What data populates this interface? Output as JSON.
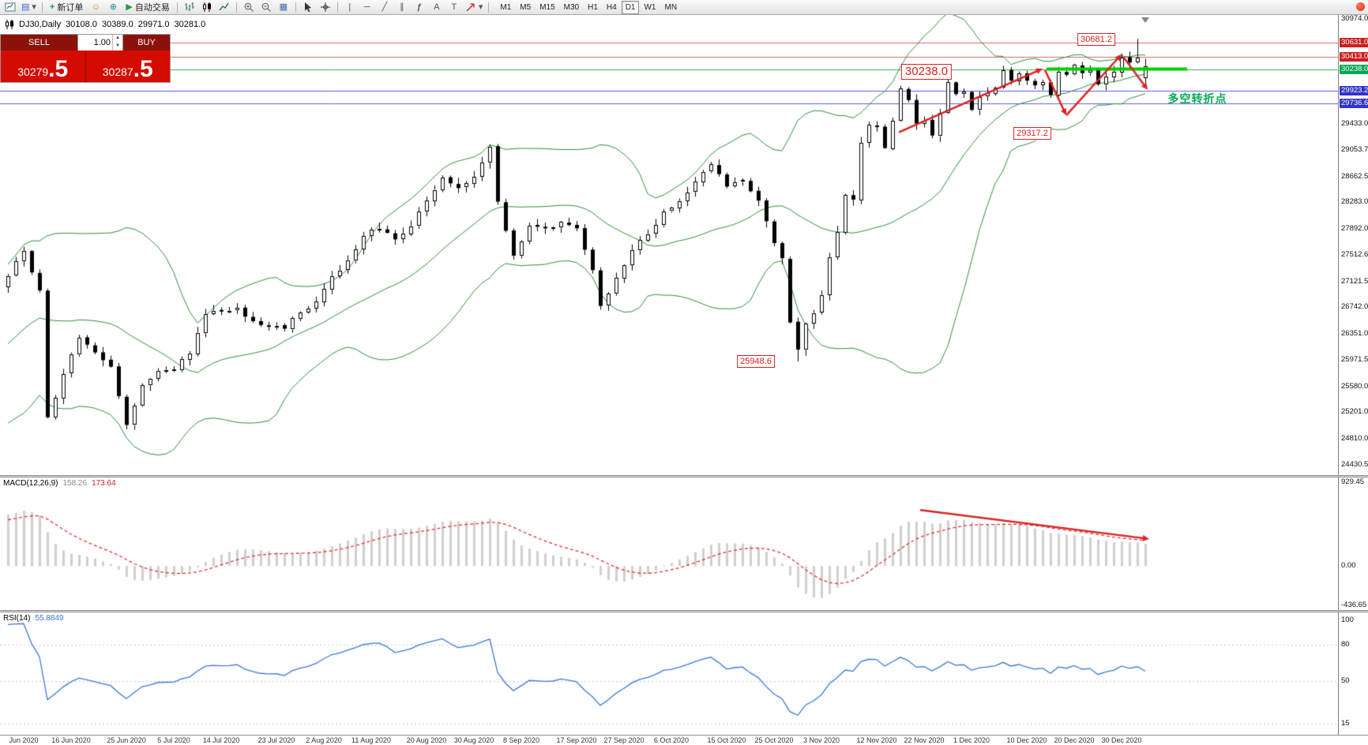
{
  "toolbar": {
    "buttons": {
      "new_order": "新订单",
      "autotrading": "自动交易"
    },
    "glyphs": {
      "profiles": "▤",
      "caret": "▾",
      "plus": "+",
      "community": "☺",
      "web": "⊕",
      "play": "▶",
      "tile": "▦",
      "vline": "|",
      "hline": "─",
      "trendline": "╱",
      "channel": "∥",
      "fibonacci": "ƒ",
      "text": "A",
      "label": "T"
    },
    "timeframes": [
      "M1",
      "M5",
      "M15",
      "M30",
      "H1",
      "H4",
      "D1",
      "W1",
      "MN"
    ],
    "active_timeframe": "D1"
  },
  "chart_info": {
    "symbol_period": "DJ30,Daily",
    "open": "30108.0",
    "high": "30389.0",
    "low": "29971.0",
    "close": "30281.0"
  },
  "trade_panel": {
    "sell_label": "SELL",
    "buy_label": "BUY",
    "volume": "1.00",
    "spin_up": "▲",
    "spin_down": "▼",
    "sell_price_base": "30279",
    "sell_price_frac": ".5",
    "buy_price_base": "30287",
    "buy_price_frac": ".5"
  },
  "chart_data": {
    "type": "candlestick",
    "symbol": "DJ30",
    "period": "Daily",
    "price_axis": [
      {
        "price": 30974.0,
        "text": "30974.0"
      },
      {
        "price": 30631.0,
        "text": "30631.0",
        "bg": "#cc1f1f"
      },
      {
        "price": 30413.0,
        "text": "30413.0",
        "bg": "#cc1f1f"
      },
      {
        "price": 30238.0,
        "text": "30238.0",
        "bg": "#00a651"
      },
      {
        "price": 29923.2,
        "text": "29923.2",
        "bg": "#3333cc"
      },
      {
        "price": 29736.6,
        "text": "29736.6",
        "bg": "#3333cc"
      },
      {
        "price": 29433.0,
        "text": "29433.0"
      },
      {
        "price": 29053.7,
        "text": "29053.7"
      },
      {
        "price": 28662.5,
        "text": "28662.5"
      },
      {
        "price": 28283.0,
        "text": "28283.0"
      },
      {
        "price": 27892.0,
        "text": "27892.0"
      },
      {
        "price": 27512.6,
        "text": "27512.6"
      },
      {
        "price": 27121.5,
        "text": "27121.5"
      },
      {
        "price": 26742.0,
        "text": "26742.0"
      },
      {
        "price": 26351.0,
        "text": "26351.0"
      },
      {
        "price": 25971.5,
        "text": "25971.5"
      },
      {
        "price": 25580.0,
        "text": "25580.0"
      },
      {
        "price": 25201.0,
        "text": "25201.0"
      },
      {
        "price": 24810.0,
        "text": "24810.0"
      },
      {
        "price": 24430.5,
        "text": "24430.5"
      }
    ],
    "hlines": [
      {
        "price": 30631.0,
        "color": "#d96a6a"
      },
      {
        "price": 30413.0,
        "color": "#d96a6a"
      },
      {
        "price": 30238.0,
        "color": "#37b24d"
      },
      {
        "price": 29923.2,
        "color": "#5c5cd6"
      },
      {
        "price": 29736.6,
        "color": "#5c5cd6"
      }
    ],
    "green_segment": {
      "price": 30238.0,
      "i1": 131.5,
      "i2": 149.3,
      "color": "#00cf00",
      "width": 4
    },
    "arrow_color": "#dd2222",
    "arrows": [
      {
        "i1": 112.8,
        "p1": 29310,
        "i2": 131.0,
        "p2": 30245
      },
      {
        "i1": 131.3,
        "p1": 30225,
        "i2": 134.0,
        "p2": 29560
      },
      {
        "i1": 134.0,
        "p1": 29560,
        "i2": 141.0,
        "p2": 30455
      },
      {
        "i1": 141.3,
        "p1": 30405,
        "i2": 144.3,
        "p2": 29935
      }
    ],
    "annotations": [
      {
        "text": "30681.2",
        "i": 137.8,
        "price": 30672,
        "style": "box"
      },
      {
        "text": "30238.0",
        "i": 116.3,
        "price": 30195,
        "style": "box-large"
      },
      {
        "text": "29317.2",
        "i": 129.7,
        "price": 29295,
        "style": "box"
      },
      {
        "text": "25948.6",
        "i": 94.7,
        "price": 25950,
        "style": "box"
      },
      {
        "text": "多空转折点",
        "i": 150.6,
        "price": 29810,
        "style": "green-text"
      }
    ],
    "bollinger": {
      "period": 20,
      "deviation": 2,
      "color": "#2f8f3f"
    },
    "candles": {
      "count": 145,
      "spacing_px": 10,
      "anchors": [
        [
          0,
          27200
        ],
        [
          2,
          27570
        ],
        [
          4,
          26990
        ],
        [
          5,
          25128
        ],
        [
          7,
          25763
        ],
        [
          9,
          26290
        ],
        [
          11,
          26080
        ],
        [
          13,
          25871
        ],
        [
          15,
          25016
        ],
        [
          17,
          25595
        ],
        [
          19,
          25813
        ],
        [
          21,
          25827
        ],
        [
          23,
          26067
        ],
        [
          25,
          26642
        ],
        [
          27,
          26680
        ],
        [
          29,
          26734
        ],
        [
          31,
          26539
        ],
        [
          33,
          26469
        ],
        [
          35,
          26428
        ],
        [
          37,
          26664
        ],
        [
          39,
          26828
        ],
        [
          41,
          27201
        ],
        [
          43,
          27433
        ],
        [
          45,
          27791
        ],
        [
          47,
          27896
        ],
        [
          49,
          27739
        ],
        [
          51,
          27930
        ],
        [
          53,
          28308
        ],
        [
          55,
          28645
        ],
        [
          57,
          28492
        ],
        [
          59,
          28654
        ],
        [
          61,
          29100
        ],
        [
          62,
          28293
        ],
        [
          64,
          27501
        ],
        [
          66,
          27940
        ],
        [
          68,
          27901
        ],
        [
          70,
          27995
        ],
        [
          72,
          27902
        ],
        [
          74,
          27288
        ],
        [
          75,
          26763
        ],
        [
          77,
          27174
        ],
        [
          79,
          27584
        ],
        [
          81,
          27817
        ],
        [
          83,
          28149
        ],
        [
          85,
          28304
        ],
        [
          87,
          28587
        ],
        [
          89,
          28838
        ],
        [
          91,
          28514
        ],
        [
          93,
          28606
        ],
        [
          95,
          28308
        ],
        [
          97,
          27685
        ],
        [
          98,
          27463
        ],
        [
          99,
          26520
        ],
        [
          100,
          26122
        ],
        [
          101,
          26502
        ],
        [
          102,
          26659
        ],
        [
          103,
          26925
        ],
        [
          104,
          27480
        ],
        [
          105,
          27848
        ],
        [
          106,
          28390
        ],
        [
          107,
          28323
        ],
        [
          108,
          29158
        ],
        [
          109,
          29420
        ],
        [
          110,
          29398
        ],
        [
          111,
          29080
        ],
        [
          112,
          29480
        ],
        [
          113,
          29950
        ],
        [
          114,
          29783
        ],
        [
          115,
          29438
        ],
        [
          116,
          29483
        ],
        [
          117,
          29263
        ],
        [
          118,
          29591
        ],
        [
          119,
          30046
        ],
        [
          120,
          29872
        ],
        [
          121,
          29910
        ],
        [
          122,
          29639
        ],
        [
          123,
          29824
        ],
        [
          124,
          29884
        ],
        [
          125,
          29970
        ],
        [
          126,
          30218
        ],
        [
          127,
          30069
        ],
        [
          128,
          30174
        ],
        [
          129,
          30069
        ],
        [
          130,
          29999
        ],
        [
          131,
          30046
        ],
        [
          132,
          29861
        ],
        [
          133,
          30199
        ],
        [
          134,
          30155
        ],
        [
          135,
          30303
        ],
        [
          136,
          30179
        ],
        [
          137,
          30216
        ],
        [
          138,
          30015
        ],
        [
          139,
          30129
        ],
        [
          140,
          30200
        ],
        [
          141,
          30404
        ],
        [
          142,
          30335
        ],
        [
          143,
          30409
        ],
        [
          144,
          30281
        ]
      ],
      "specials": {
        "low_i": 100,
        "low": 25948.6,
        "high_i": 143,
        "high": 30681.2
      },
      "last": [
        30108.0,
        30389.0,
        29971.0,
        30281.0
      ]
    },
    "date_axis": [
      {
        "i": 2,
        "text": "Jun 2020"
      },
      {
        "i": 8,
        "text": "16 Jun 2020"
      },
      {
        "i": 15,
        "text": "25 Jun 2020"
      },
      {
        "i": 21,
        "text": "5 Jul 2020"
      },
      {
        "i": 27,
        "text": "14 Jul 2020"
      },
      {
        "i": 34,
        "text": "23 Jul 2020"
      },
      {
        "i": 40,
        "text": "2 Aug 2020"
      },
      {
        "i": 46,
        "text": "11 Aug 2020"
      },
      {
        "i": 53,
        "text": "20 Aug 2020"
      },
      {
        "i": 59,
        "text": "30 Aug 2020"
      },
      {
        "i": 65,
        "text": "8 Sep 2020"
      },
      {
        "i": 72,
        "text": "17 Sep 2020"
      },
      {
        "i": 78,
        "text": "27 Sep 2020"
      },
      {
        "i": 84,
        "text": "6 Oct 2020"
      },
      {
        "i": 91,
        "text": "15 Oct 2020"
      },
      {
        "i": 97,
        "text": "25 Oct 2020"
      },
      {
        "i": 103,
        "text": "3 Nov 2020"
      },
      {
        "i": 110,
        "text": "12 Nov 2020"
      },
      {
        "i": 116,
        "text": "22 Nov 2020"
      },
      {
        "i": 122,
        "text": "1 Dec 2020"
      },
      {
        "i": 129,
        "text": "10 Dec 2020"
      },
      {
        "i": 135,
        "text": "20 Dec 2020"
      },
      {
        "i": 141,
        "text": "30 Dec 2020"
      }
    ]
  },
  "macd_panel": {
    "label": "MACD(12,26,9)",
    "value_main": "158.26",
    "value_signal": "173.64",
    "axis": [
      {
        "v": 929.45,
        "text": "929.45"
      },
      {
        "v": 0,
        "text": "0.00"
      },
      {
        "v": -436.65,
        "text": "-436.65"
      }
    ],
    "histogram_color": "#cfcfcf",
    "signal_color": "#e03131",
    "arrow": {
      "i1": 115.5,
      "v1": 620,
      "i2": 144.5,
      "v2": 300
    }
  },
  "rsi_panel": {
    "label": "RSI(14)",
    "value": "55.8849",
    "period": 14,
    "axis": [
      {
        "v": 100,
        "text": "100"
      },
      {
        "v": 80,
        "text": "80"
      },
      {
        "v": 50,
        "text": "50"
      },
      {
        "v": 15,
        "text": "15"
      }
    ],
    "levels": [
      80,
      50,
      15
    ],
    "line_color": "#3c78d8"
  }
}
